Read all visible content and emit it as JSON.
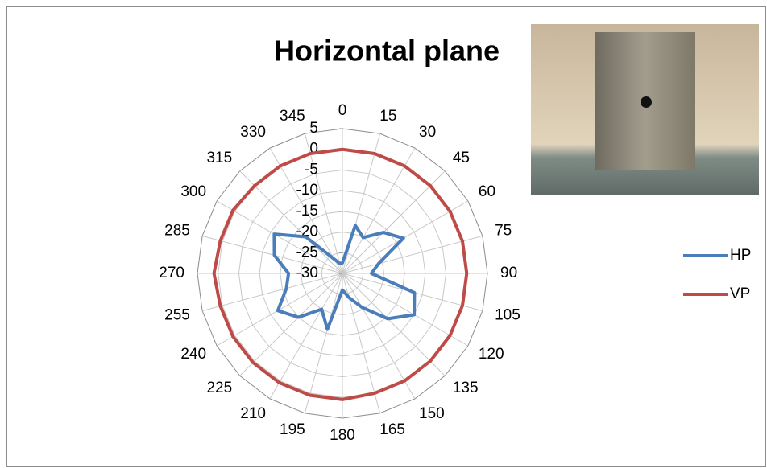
{
  "chart_data": {
    "type": "radar",
    "title": "Horizontal plane",
    "categories": [
      "0",
      "15",
      "30",
      "45",
      "60",
      "75",
      "90",
      "105",
      "120",
      "135",
      "150",
      "165",
      "180",
      "195",
      "210",
      "225",
      "240",
      "255",
      "270",
      "285",
      "300",
      "315",
      "330",
      "345"
    ],
    "rlim": [
      -30,
      5
    ],
    "rticks": [
      -30,
      -25,
      -20,
      -15,
      -10,
      -5,
      0,
      5
    ],
    "grid": true,
    "legend": "right",
    "series": [
      {
        "name": "HP",
        "color": "#4a7ebb",
        "values": [
          -27.5,
          -18,
          -20,
          -16,
          -13,
          -21,
          -23,
          -12,
          -10,
          -14.5,
          -20.5,
          -24,
          -26,
          -16,
          -20,
          -15,
          -12,
          -16,
          -17,
          -13,
          -11,
          -17.5,
          -26,
          -27.5
        ]
      },
      {
        "name": "VP",
        "color": "#be4b48",
        "values": [
          0,
          0,
          0,
          0,
          0,
          0,
          0,
          0,
          0,
          0,
          0,
          0,
          0.5,
          0.5,
          0.5,
          0.5,
          0.5,
          0.5,
          1,
          0.5,
          0.5,
          0,
          0,
          0
        ]
      }
    ]
  }
}
